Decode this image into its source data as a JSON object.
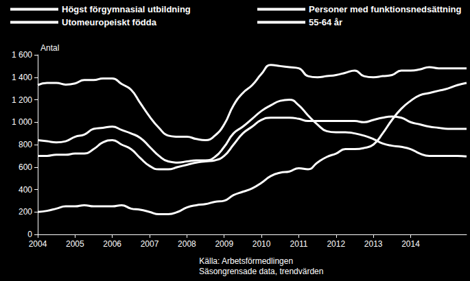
{
  "chart_data": {
    "type": "line",
    "y_label": "Antal",
    "notes": [
      "Källa: Arbetsförmedlingen",
      "Säsongrensade data, trendvärden"
    ],
    "legend": "top",
    "grid": false,
    "x": [
      2004,
      2004.25,
      2004.5,
      2004.75,
      2005,
      2005.25,
      2005.5,
      2005.75,
      2006,
      2006.25,
      2006.5,
      2006.75,
      2007,
      2007.25,
      2007.5,
      2007.75,
      2008,
      2008.25,
      2008.5,
      2008.75,
      2009,
      2009.25,
      2009.5,
      2009.75,
      2010,
      2010.25,
      2010.5,
      2010.75,
      2011,
      2011.25,
      2011.5,
      2011.75,
      2012,
      2012.25,
      2012.5,
      2012.75,
      2013,
      2013.25,
      2013.5,
      2013.75,
      2014,
      2014.25,
      2014.5,
      2014.75,
      2015,
      2015.25,
      2015.5
    ],
    "xlim": [
      2004,
      2015.5
    ],
    "xticks": [
      2004,
      2005,
      2006,
      2007,
      2008,
      2009,
      2010,
      2011,
      2012,
      2013,
      2014
    ],
    "ylim": [
      0,
      1600
    ],
    "yticks": [
      0,
      200,
      400,
      600,
      800,
      {
        "value": 1000,
        "label": "1 000"
      },
      {
        "value": 1200,
        "label": "1 200"
      },
      {
        "value": 1400,
        "label": "1 400"
      },
      {
        "value": 1600,
        "label": "1 600"
      }
    ],
    "series": [
      {
        "name": "Högst förgymnasial utbildning",
        "color": "#ffffff",
        "values": [
          700,
          700,
          710,
          710,
          720,
          720,
          760,
          820,
          840,
          800,
          760,
          680,
          610,
          580,
          580,
          600,
          620,
          640,
          650,
          660,
          700,
          800,
          900,
          960,
          1020,
          1040,
          1040,
          1040,
          1030,
          1010,
          1010,
          1010,
          1010,
          1010,
          1010,
          1000,
          1020,
          1040,
          1050,
          1040,
          1000,
          980,
          960,
          950,
          940,
          940,
          940
        ]
      },
      {
        "name": "Personer med funktionsnedsättning",
        "color": "#ffffff",
        "values": [
          200,
          210,
          230,
          250,
          250,
          260,
          250,
          250,
          250,
          260,
          230,
          220,
          200,
          180,
          180,
          200,
          240,
          260,
          270,
          290,
          300,
          350,
          380,
          410,
          460,
          520,
          550,
          560,
          590,
          580,
          640,
          690,
          720,
          760,
          760,
          770,
          800,
          900,
          1020,
          1120,
          1190,
          1240,
          1260,
          1280,
          1300,
          1330,
          1350
        ]
      },
      {
        "name": "Utomeuropeiskt födda",
        "color": "#ffffff",
        "values": [
          1330,
          1350,
          1350,
          1335,
          1345,
          1375,
          1375,
          1390,
          1390,
          1340,
          1290,
          1170,
          1050,
          950,
          880,
          870,
          870,
          850,
          840,
          880,
          980,
          1150,
          1260,
          1330,
          1430,
          1510,
          1500,
          1490,
          1480,
          1410,
          1400,
          1410,
          1420,
          1440,
          1460,
          1410,
          1400,
          1410,
          1420,
          1460,
          1460,
          1470,
          1490,
          1480,
          1480,
          1480,
          1480
        ]
      },
      {
        "name": "55-64 år",
        "color": "#ffffff",
        "values": [
          840,
          830,
          820,
          830,
          870,
          890,
          940,
          950,
          960,
          930,
          900,
          860,
          780,
          700,
          650,
          640,
          650,
          660,
          660,
          690,
          780,
          900,
          960,
          1030,
          1100,
          1150,
          1190,
          1200,
          1150,
          1060,
          980,
          920,
          910,
          910,
          900,
          880,
          850,
          810,
          790,
          780,
          760,
          720,
          700,
          700,
          700,
          700,
          695
        ]
      }
    ]
  }
}
